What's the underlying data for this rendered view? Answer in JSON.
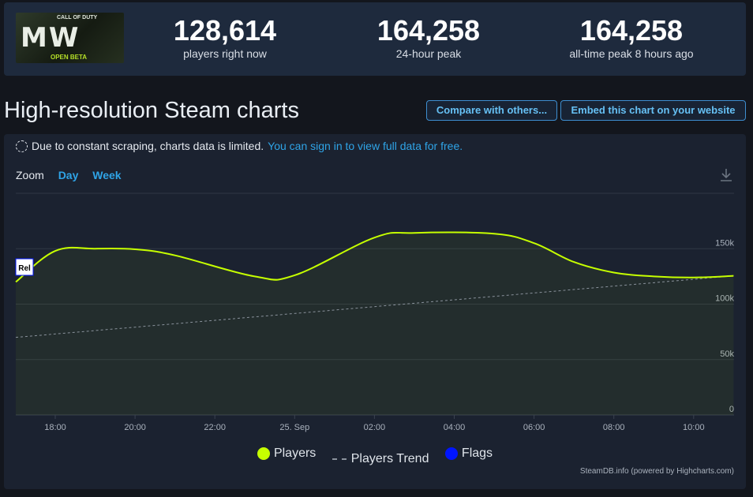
{
  "header": {
    "logo": {
      "mw_text": "MW",
      "cod_text": "CALL OF DUTY",
      "beta_text": "OPEN BETA"
    },
    "stats": [
      {
        "value": "128,614",
        "label": "players right now"
      },
      {
        "value": "164,258",
        "label": "24-hour peak"
      },
      {
        "value": "164,258",
        "label": "all-time peak 8 hours ago"
      }
    ]
  },
  "page_title": "High-resolution Steam charts",
  "buttons": {
    "compare": "Compare with others...",
    "embed": "Embed this chart on your website"
  },
  "notice": {
    "text": "Due to constant scraping, charts data is limited.",
    "link": "You can sign in to view full data for free."
  },
  "zoom": {
    "label": "Zoom",
    "day": "Day",
    "week": "Week"
  },
  "colors": {
    "players": "#c6ff00",
    "trend": "#8a929c",
    "flags": "#0015ff"
  },
  "chart_data": {
    "type": "line",
    "x_ticks": [
      "18:00",
      "20:00",
      "22:00",
      "25. Sep",
      "02:00",
      "04:00",
      "06:00",
      "08:00",
      "10:00"
    ],
    "y_ticks": [
      "0",
      "50k",
      "100k",
      "150k"
    ],
    "ylim": [
      0,
      200000
    ],
    "grid": true,
    "legend_position": "bottom",
    "series": [
      {
        "name": "Players",
        "points": [
          {
            "hour": -1.0,
            "value": 120000
          },
          {
            "hour": 0.0,
            "value": 148000
          },
          {
            "hour": 1.0,
            "value": 150000
          },
          {
            "hour": 2.0,
            "value": 149500
          },
          {
            "hour": 3.0,
            "value": 144000
          },
          {
            "hour": 5.0,
            "value": 125000
          },
          {
            "hour": 6.0,
            "value": 126000
          },
          {
            "hour": 8.0,
            "value": 160000
          },
          {
            "hour": 9.0,
            "value": 164258
          },
          {
            "hour": 11.0,
            "value": 163500
          },
          {
            "hour": 12.0,
            "value": 155000
          },
          {
            "hour": 13.0,
            "value": 138000
          },
          {
            "hour": 14.0,
            "value": 128500
          },
          {
            "hour": 15.0,
            "value": 125000
          },
          {
            "hour": 16.0,
            "value": 124000
          },
          {
            "hour": 17.0,
            "value": 125500
          }
        ]
      },
      {
        "name": "Players Trend",
        "points": [
          {
            "hour": -1.0,
            "value": 70000
          },
          {
            "hour": 17.0,
            "value": 125500
          }
        ]
      },
      {
        "name": "Flags",
        "points": []
      }
    ],
    "flag_label": "Rel",
    "credit": "SteamDB.info (powered by Highcharts.com)"
  }
}
